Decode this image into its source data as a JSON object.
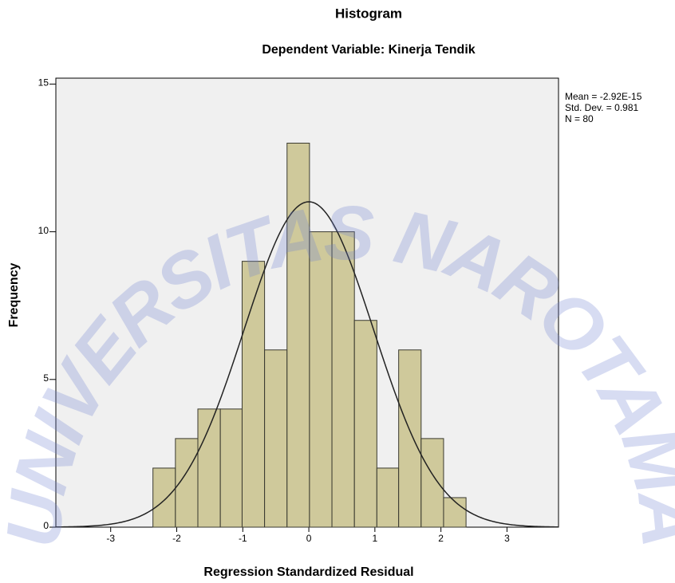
{
  "chart_data": {
    "type": "histogram",
    "title": "Histogram",
    "subtitle": "Dependent Variable: Kinerja Tendik",
    "x_label": "Regression Standardized Residual",
    "y_label": "Frequency",
    "bins": [
      -2.36,
      -2.02,
      -1.68,
      -1.34,
      -1.01,
      -0.67,
      -0.33,
      0.01,
      0.35,
      0.69,
      1.03,
      1.36,
      1.7,
      2.04,
      2.38
    ],
    "values": [
      2,
      3,
      4,
      4,
      9,
      6,
      13,
      10,
      10,
      7,
      2,
      6,
      3,
      1
    ],
    "color": "#c9c28c",
    "xlim": [
      -3.83,
      3.78
    ],
    "xticks": [
      -3,
      -2,
      -1,
      0,
      1,
      2,
      3
    ],
    "ylim": [
      0,
      15.2
    ],
    "yticks": [
      0,
      5,
      10,
      15
    ],
    "stats": [
      {
        "value": -2.92e-15,
        "label": "Mean = -2.92E-15"
      },
      {
        "value": 0.981,
        "label": "Std. Dev. = 0.981"
      },
      {
        "value": 80,
        "label": "N = 80"
      }
    ],
    "watermark": "UNIVERSITAS NAROTAMA"
  }
}
